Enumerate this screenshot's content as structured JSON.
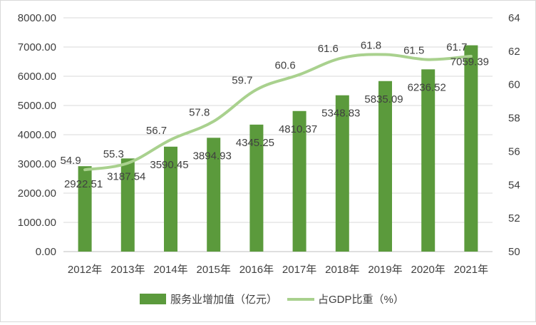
{
  "chart_data": {
    "type": "bar+line",
    "categories": [
      "2012年",
      "2013年",
      "2014年",
      "2015年",
      "2016年",
      "2017年",
      "2018年",
      "2019年",
      "2020年",
      "2021年"
    ],
    "series": [
      {
        "name": "服务业增加值（亿元）",
        "type": "bar",
        "axis": "left",
        "values": [
          2922.51,
          3187.54,
          3590.45,
          3894.93,
          4345.25,
          4810.37,
          5348.83,
          5835.09,
          6236.52,
          7059.39
        ],
        "labels": [
          "2922.51",
          "3187.54",
          "3590.45",
          "3894.93",
          "4345.25",
          "4810.37",
          "5348.83",
          "5835.09",
          "6236.52",
          "7059.39"
        ],
        "color": "#5b9a3c"
      },
      {
        "name": "占GDP比重（%）",
        "type": "line",
        "axis": "right",
        "values": [
          54.9,
          55.3,
          56.7,
          57.8,
          59.7,
          60.6,
          61.6,
          61.8,
          61.5,
          61.7
        ],
        "labels": [
          "54.9",
          "55.3",
          "56.7",
          "57.8",
          "59.7",
          "60.6",
          "61.6",
          "61.8",
          "61.5",
          "61.7"
        ],
        "color": "#a9d18e"
      }
    ],
    "left_axis": {
      "ylim": [
        0,
        8000
      ],
      "ticks": [
        0,
        1000,
        2000,
        3000,
        4000,
        5000,
        6000,
        7000,
        8000
      ],
      "tick_labels": [
        "0.00",
        "1000.00",
        "2000.00",
        "3000.00",
        "4000.00",
        "5000.00",
        "6000.00",
        "7000.00",
        "8000.00"
      ]
    },
    "right_axis": {
      "ylim": [
        50,
        64
      ],
      "ticks": [
        50,
        52,
        54,
        56,
        58,
        60,
        62,
        64
      ],
      "tick_labels": [
        "50",
        "52",
        "54",
        "56",
        "58",
        "60",
        "62",
        "64"
      ]
    },
    "grid": true,
    "legend": "bottom"
  }
}
